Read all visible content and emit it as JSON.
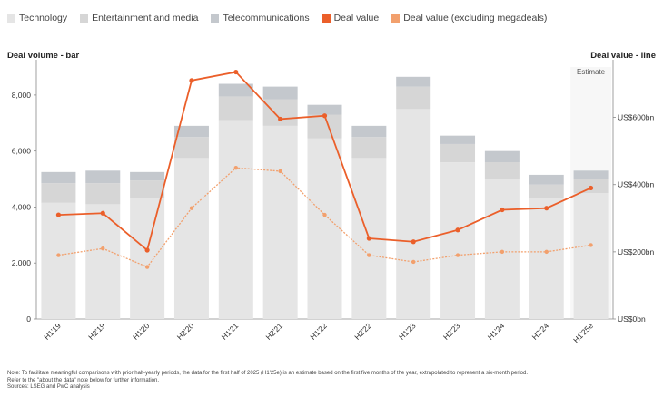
{
  "legend": [
    {
      "label": "Technology",
      "color": "#e5e5e5"
    },
    {
      "label": "Entertainment and media",
      "color": "#d6d6d6"
    },
    {
      "label": "Telecommunications",
      "color": "#c4c8cd"
    },
    {
      "label": "Deal value",
      "color": "#eb5f2a"
    },
    {
      "label": "Deal value (excluding megadeals)",
      "color": "#f2a06d"
    }
  ],
  "left_axis_title": "Deal volume - bar",
  "right_axis_title": "Deal value - line",
  "estimate_label": "Estimate",
  "notes": [
    "Note: To facilitate meaningful comparisons with prior half-yearly periods, the data for the first half of 2025 (H1'25e) is an estimate based on the first five months of the year, extrapolated to represent a six-month period.",
    "Refer to the \"about the data\" note below for further information.",
    "Sources: LSEG and PwC analysis"
  ],
  "chart_data": {
    "type": "bar",
    "categories": [
      "H1'19",
      "H2'19",
      "H1'20",
      "H2'20",
      "H1'21",
      "H2'21",
      "H1'22",
      "H2'22",
      "H1'23",
      "H2'23",
      "H1'24",
      "H2'24",
      "H1'25e"
    ],
    "series": [
      {
        "name": "Technology",
        "type": "bar",
        "stack": "volume",
        "axis": "left",
        "color": "#e5e5e5",
        "values": [
          4150,
          4100,
          4300,
          5750,
          7100,
          6900,
          6450,
          5750,
          7500,
          5600,
          5000,
          4300,
          4500
        ]
      },
      {
        "name": "Entertainment and media",
        "type": "bar",
        "stack": "volume",
        "axis": "left",
        "color": "#d6d6d6",
        "values": [
          700,
          750,
          650,
          750,
          850,
          950,
          850,
          750,
          800,
          650,
          600,
          500,
          500
        ]
      },
      {
        "name": "Telecommunications",
        "type": "bar",
        "stack": "volume",
        "axis": "left",
        "color": "#c4c8cd",
        "values": [
          400,
          450,
          300,
          400,
          450,
          450,
          350,
          400,
          350,
          300,
          400,
          350,
          300
        ]
      },
      {
        "name": "Deal value",
        "type": "line",
        "axis": "right",
        "color": "#eb5f2a",
        "values": [
          310,
          315,
          205,
          710,
          735,
          595,
          605,
          240,
          230,
          265,
          325,
          330,
          390
        ]
      },
      {
        "name": "Deal value (excluding megadeals)",
        "type": "line",
        "axis": "right",
        "color": "#f2a06d",
        "values": [
          190,
          210,
          155,
          330,
          450,
          440,
          310,
          190,
          170,
          190,
          200,
          200,
          220
        ]
      }
    ],
    "left_axis": {
      "min": 0,
      "max": 9000,
      "ticks": [
        0,
        2000,
        4000,
        6000,
        8000
      ],
      "tick_labels": [
        "0",
        "2,000",
        "4,000",
        "6,000",
        "8,000"
      ]
    },
    "right_axis": {
      "min": 0,
      "max": 750,
      "ticks": [
        0,
        200,
        400,
        600
      ],
      "tick_labels": [
        "US$0bn",
        "US$200bn",
        "US$400bn",
        "US$600bn"
      ]
    },
    "estimate_category": "H1'25e",
    "grid": false
  }
}
